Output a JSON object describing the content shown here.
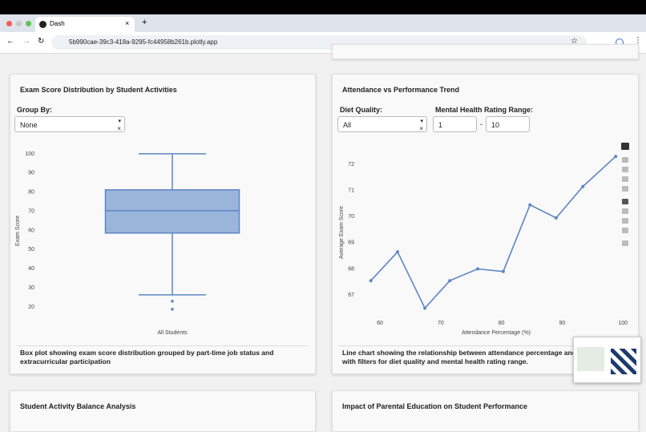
{
  "browser": {
    "tab_title": "Dash",
    "url": "5b990cae-39c3-418a-9295-fc44958b261b.plotly.app"
  },
  "cards": [
    {
      "title": "Exam Score Distribution by Student Activities",
      "controls": [
        {
          "label": "Group By:",
          "value": "None"
        }
      ],
      "chart": {
        "type": "box",
        "y_label": "Exam Score",
        "categories": [
          "All Students"
        ],
        "min": [
          26.3
        ],
        "q1": [
          58.6
        ],
        "median": [
          70.3
        ],
        "q3": [
          81.2
        ],
        "max": [
          100
        ],
        "outliers": [
          [
            23,
            18.8
          ]
        ],
        "color": "#5b86c5",
        "ylim": [
          16.2,
          102.9
        ],
        "yticks": [
          20,
          30,
          40,
          50,
          60,
          70,
          80,
          90,
          100
        ]
      },
      "caption": "Box plot showing exam score distribution grouped by part-time job status and extracurricular participation"
    },
    {
      "title": "Attendance vs Performance Trend",
      "controls": [
        {
          "label": "Diet Quality:",
          "value": "All"
        },
        {
          "label": "Mental Health Rating Range:",
          "range_min": 1,
          "separator": "-",
          "range_max": 10
        }
      ],
      "chart": {
        "type": "line",
        "x_label": "Attendance Percentage (%)",
        "y_label": "Average Exam Score",
        "x": [
          58.5,
          62.9,
          67.4,
          71.5,
          76.1,
          80.3,
          84.7,
          89.0,
          93.4,
          98.8
        ],
        "values": [
          67.55,
          68.65,
          66.5,
          67.55,
          68.0,
          67.9,
          70.45,
          69.95,
          71.15,
          72.3
        ],
        "color": "#5b86c5",
        "xlim": [
          57.75,
          100.5
        ],
        "ylim": [
          66.33,
          72.46
        ],
        "xticks": [
          60,
          70,
          80,
          90,
          100
        ],
        "yticks": [
          67,
          68,
          69,
          70,
          71,
          72
        ]
      },
      "caption": "Line chart showing the relationship between attendance percentage and exam scores with filters for diet quality and mental health rating range."
    },
    {
      "title": "Student Activity Balance Analysis"
    },
    {
      "title": "Impact of Parental Education on Student Performance"
    }
  ]
}
